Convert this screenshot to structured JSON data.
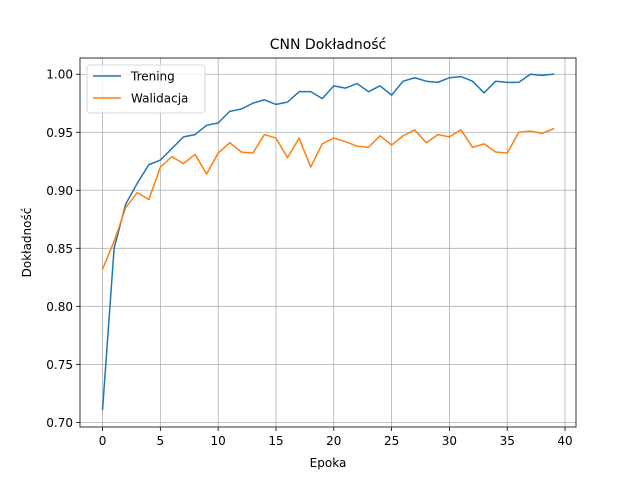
{
  "chart_data": {
    "type": "line",
    "title": "CNN Dokładność",
    "xlabel": "Epoka",
    "ylabel": "Dokładność",
    "xlim": [
      -1.95,
      40.95
    ],
    "ylim": [
      0.696,
      1.014
    ],
    "xticks": [
      0,
      5,
      10,
      15,
      20,
      25,
      30,
      35,
      40
    ],
    "yticks": [
      0.7,
      0.75,
      0.8,
      0.85,
      0.9,
      0.95,
      1.0
    ],
    "ytick_labels": [
      "0.70",
      "0.75",
      "0.80",
      "0.85",
      "0.90",
      "0.95",
      "1.00"
    ],
    "grid": true,
    "legend": "upper-left",
    "x": [
      0,
      1,
      2,
      3,
      4,
      5,
      6,
      7,
      8,
      9,
      10,
      11,
      12,
      13,
      14,
      15,
      16,
      17,
      18,
      19,
      20,
      21,
      22,
      23,
      24,
      25,
      26,
      27,
      28,
      29,
      30,
      31,
      32,
      33,
      34,
      35,
      36,
      37,
      38,
      39
    ],
    "series": [
      {
        "name": "Trening",
        "color": "#1f77b4",
        "values": [
          0.711,
          0.85,
          0.888,
          0.906,
          0.922,
          0.926,
          0.936,
          0.946,
          0.948,
          0.956,
          0.958,
          0.968,
          0.97,
          0.975,
          0.978,
          0.974,
          0.976,
          0.985,
          0.985,
          0.979,
          0.99,
          0.988,
          0.992,
          0.985,
          0.99,
          0.982,
          0.994,
          0.997,
          0.994,
          0.993,
          0.997,
          0.998,
          0.994,
          0.984,
          0.994,
          0.993,
          0.993,
          1.0,
          0.999,
          1.0
        ]
      },
      {
        "name": "Walidacja",
        "color": "#ff7f0e",
        "values": [
          0.832,
          0.856,
          0.885,
          0.898,
          0.892,
          0.92,
          0.929,
          0.923,
          0.931,
          0.914,
          0.932,
          0.941,
          0.933,
          0.932,
          0.948,
          0.945,
          0.928,
          0.945,
          0.92,
          0.94,
          0.945,
          0.942,
          0.938,
          0.937,
          0.947,
          0.939,
          0.947,
          0.952,
          0.941,
          0.948,
          0.946,
          0.952,
          0.937,
          0.94,
          0.933,
          0.932,
          0.95,
          0.951,
          0.949,
          0.953
        ]
      }
    ]
  }
}
